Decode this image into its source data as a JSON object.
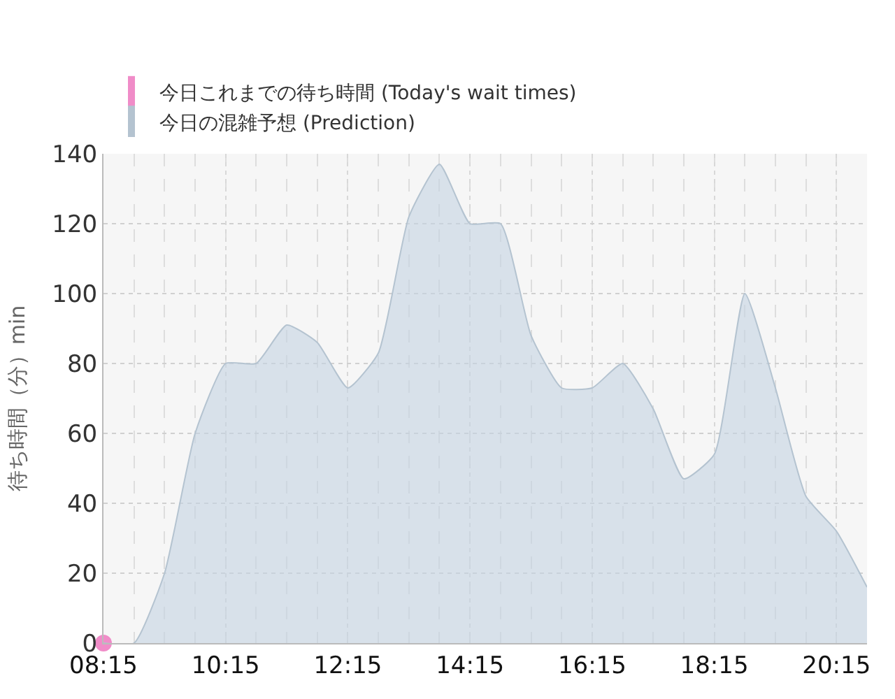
{
  "chart_data": {
    "type": "area",
    "ylabel": "待ち時間（分）min",
    "x": [
      8.25,
      8.75,
      9.25,
      9.75,
      10.25,
      10.75,
      11.25,
      11.75,
      12.25,
      12.75,
      13.25,
      13.75,
      14.25,
      14.75,
      15.25,
      15.75,
      16.25,
      16.75,
      17.25,
      17.75,
      18.25,
      18.75,
      19.25,
      19.75,
      20.25,
      20.75
    ],
    "series": [
      {
        "name": "今日これまでの待ち時間 (Today's wait times)",
        "type": "scatter",
        "color": "#f08cc8",
        "x": [
          8.25
        ],
        "values": [
          0
        ]
      },
      {
        "name": "今日の混雑予想 (Prediction)",
        "color": "#b4c3d0",
        "values": [
          0,
          0,
          20,
          60,
          80,
          80,
          91,
          86,
          73,
          83,
          122,
          137,
          120,
          120,
          88,
          73,
          73,
          80,
          67,
          47,
          54,
          100,
          73,
          42,
          32,
          16
        ]
      }
    ],
    "xlim": [
      8.25,
      20.75
    ],
    "ylim": [
      0,
      140
    ],
    "xticks": [
      {
        "value": 8.25,
        "label": "08:15"
      },
      {
        "value": 10.25,
        "label": "10:15"
      },
      {
        "value": 12.25,
        "label": "12:15"
      },
      {
        "value": 14.25,
        "label": "14:15"
      },
      {
        "value": 16.25,
        "label": "16:15"
      },
      {
        "value": 18.25,
        "label": "18:15"
      },
      {
        "value": 20.25,
        "label": "20:15"
      }
    ],
    "yticks": [
      0,
      20,
      40,
      60,
      80,
      100,
      120,
      140
    ],
    "grid": true,
    "legend": "top left"
  }
}
